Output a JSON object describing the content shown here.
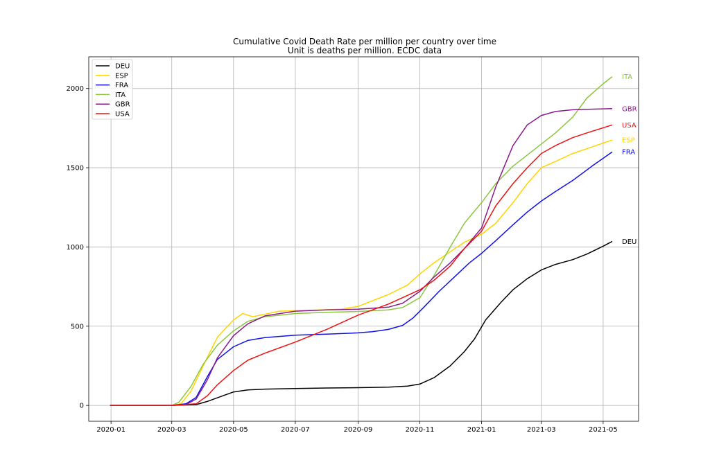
{
  "chart_data": {
    "type": "line",
    "title": "Cumulative Covid Death Rate per million per country over time",
    "subtitle": "Unit is deaths per million. ECDC data",
    "xlabel": "",
    "ylabel": "",
    "xlim": [
      "2019-12-10",
      "2021-06-05"
    ],
    "ylim": [
      -100,
      2200
    ],
    "x_ticks": [
      "2020-01",
      "2020-03",
      "2020-05",
      "2020-07",
      "2020-09",
      "2020-11",
      "2021-01",
      "2021-03",
      "2021-05"
    ],
    "y_ticks": [
      0,
      500,
      1000,
      1500,
      2000
    ],
    "grid": true,
    "legend_position": "top-left",
    "series": [
      {
        "name": "DEU",
        "color": "#000000",
        "points": [
          [
            "2019-12-31",
            0
          ],
          [
            "2020-03-01",
            0
          ],
          [
            "2020-03-25",
            5
          ],
          [
            "2020-04-05",
            25
          ],
          [
            "2020-04-20",
            60
          ],
          [
            "2020-05-01",
            85
          ],
          [
            "2020-05-15",
            98
          ],
          [
            "2020-06-01",
            103
          ],
          [
            "2020-07-01",
            107
          ],
          [
            "2020-08-01",
            110
          ],
          [
            "2020-09-01",
            112
          ],
          [
            "2020-10-01",
            115
          ],
          [
            "2020-10-20",
            122
          ],
          [
            "2020-11-01",
            135
          ],
          [
            "2020-11-15",
            175
          ],
          [
            "2020-12-01",
            250
          ],
          [
            "2020-12-15",
            340
          ],
          [
            "2020-12-25",
            420
          ],
          [
            "2021-01-05",
            540
          ],
          [
            "2021-01-20",
            650
          ],
          [
            "2021-02-01",
            730
          ],
          [
            "2021-02-15",
            800
          ],
          [
            "2021-03-01",
            855
          ],
          [
            "2021-03-15",
            890
          ],
          [
            "2021-04-01",
            920
          ],
          [
            "2021-04-15",
            955
          ],
          [
            "2021-05-01",
            1005
          ],
          [
            "2021-05-10",
            1035
          ]
        ]
      },
      {
        "name": "ESP",
        "color": "#ffd400",
        "points": [
          [
            "2019-12-31",
            0
          ],
          [
            "2020-03-01",
            0
          ],
          [
            "2020-03-10",
            10
          ],
          [
            "2020-03-20",
            90
          ],
          [
            "2020-04-01",
            250
          ],
          [
            "2020-04-15",
            430
          ],
          [
            "2020-05-01",
            540
          ],
          [
            "2020-05-10",
            580
          ],
          [
            "2020-05-20",
            560
          ],
          [
            "2020-06-15",
            595
          ],
          [
            "2020-07-15",
            600
          ],
          [
            "2020-08-15",
            607
          ],
          [
            "2020-09-01",
            625
          ],
          [
            "2020-09-15",
            660
          ],
          [
            "2020-10-01",
            700
          ],
          [
            "2020-10-20",
            760
          ],
          [
            "2020-11-01",
            830
          ],
          [
            "2020-11-15",
            900
          ],
          [
            "2020-12-01",
            970
          ],
          [
            "2020-12-15",
            1030
          ],
          [
            "2021-01-01",
            1080
          ],
          [
            "2021-01-15",
            1150
          ],
          [
            "2021-02-01",
            1280
          ],
          [
            "2021-02-15",
            1400
          ],
          [
            "2021-03-01",
            1500
          ],
          [
            "2021-03-15",
            1540
          ],
          [
            "2021-04-01",
            1590
          ],
          [
            "2021-05-10",
            1675
          ]
        ]
      },
      {
        "name": "FRA",
        "color": "#1010e6",
        "points": [
          [
            "2019-12-31",
            0
          ],
          [
            "2020-03-01",
            0
          ],
          [
            "2020-03-15",
            10
          ],
          [
            "2020-03-25",
            50
          ],
          [
            "2020-04-05",
            180
          ],
          [
            "2020-04-15",
            290
          ],
          [
            "2020-05-01",
            370
          ],
          [
            "2020-05-15",
            410
          ],
          [
            "2020-06-01",
            428
          ],
          [
            "2020-07-01",
            443
          ],
          [
            "2020-08-01",
            450
          ],
          [
            "2020-09-01",
            458
          ],
          [
            "2020-09-15",
            465
          ],
          [
            "2020-10-01",
            480
          ],
          [
            "2020-10-15",
            505
          ],
          [
            "2020-10-25",
            550
          ],
          [
            "2020-11-05",
            620
          ],
          [
            "2020-11-20",
            720
          ],
          [
            "2020-12-05",
            810
          ],
          [
            "2020-12-20",
            900
          ],
          [
            "2021-01-01",
            960
          ],
          [
            "2021-01-15",
            1040
          ],
          [
            "2021-02-01",
            1140
          ],
          [
            "2021-02-15",
            1220
          ],
          [
            "2021-03-01",
            1290
          ],
          [
            "2021-03-15",
            1350
          ],
          [
            "2021-04-01",
            1420
          ],
          [
            "2021-04-20",
            1510
          ],
          [
            "2021-05-10",
            1600
          ]
        ]
      },
      {
        "name": "ITA",
        "color": "#8cc63f",
        "points": [
          [
            "2019-12-31",
            0
          ],
          [
            "2020-03-01",
            0
          ],
          [
            "2020-03-08",
            20
          ],
          [
            "2020-03-20",
            120
          ],
          [
            "2020-04-01",
            260
          ],
          [
            "2020-04-15",
            380
          ],
          [
            "2020-05-01",
            470
          ],
          [
            "2020-05-15",
            530
          ],
          [
            "2020-06-01",
            560
          ],
          [
            "2020-07-01",
            580
          ],
          [
            "2020-08-01",
            588
          ],
          [
            "2020-09-01",
            593
          ],
          [
            "2020-10-01",
            603
          ],
          [
            "2020-10-15",
            618
          ],
          [
            "2020-11-01",
            680
          ],
          [
            "2020-11-15",
            820
          ],
          [
            "2020-12-01",
            1000
          ],
          [
            "2020-12-15",
            1150
          ],
          [
            "2021-01-01",
            1280
          ],
          [
            "2021-01-15",
            1400
          ],
          [
            "2021-02-01",
            1510
          ],
          [
            "2021-02-15",
            1580
          ],
          [
            "2021-03-01",
            1650
          ],
          [
            "2021-03-15",
            1720
          ],
          [
            "2021-04-01",
            1820
          ],
          [
            "2021-04-15",
            1940
          ],
          [
            "2021-05-01",
            2030
          ],
          [
            "2021-05-10",
            2075
          ]
        ]
      },
      {
        "name": "GBR",
        "color": "#8b1a8b",
        "points": [
          [
            "2019-12-31",
            0
          ],
          [
            "2020-03-01",
            0
          ],
          [
            "2020-03-15",
            5
          ],
          [
            "2020-03-25",
            40
          ],
          [
            "2020-04-05",
            160
          ],
          [
            "2020-04-15",
            300
          ],
          [
            "2020-05-01",
            440
          ],
          [
            "2020-05-15",
            515
          ],
          [
            "2020-06-01",
            565
          ],
          [
            "2020-07-01",
            595
          ],
          [
            "2020-08-01",
            603
          ],
          [
            "2020-09-01",
            607
          ],
          [
            "2020-10-01",
            620
          ],
          [
            "2020-10-15",
            645
          ],
          [
            "2020-11-01",
            720
          ],
          [
            "2020-11-15",
            810
          ],
          [
            "2020-12-01",
            900
          ],
          [
            "2020-12-15",
            990
          ],
          [
            "2021-01-01",
            1120
          ],
          [
            "2021-01-15",
            1380
          ],
          [
            "2021-02-01",
            1640
          ],
          [
            "2021-02-15",
            1770
          ],
          [
            "2021-03-01",
            1830
          ],
          [
            "2021-03-15",
            1855
          ],
          [
            "2021-04-01",
            1866
          ],
          [
            "2021-05-10",
            1873
          ]
        ]
      },
      {
        "name": "USA",
        "color": "#ee1111",
        "points": [
          [
            "2019-12-31",
            0
          ],
          [
            "2020-03-01",
            0
          ],
          [
            "2020-03-25",
            10
          ],
          [
            "2020-04-05",
            60
          ],
          [
            "2020-04-15",
            130
          ],
          [
            "2020-05-01",
            220
          ],
          [
            "2020-05-15",
            285
          ],
          [
            "2020-06-01",
            330
          ],
          [
            "2020-07-01",
            400
          ],
          [
            "2020-08-01",
            480
          ],
          [
            "2020-09-01",
            570
          ],
          [
            "2020-10-01",
            640
          ],
          [
            "2020-10-15",
            680
          ],
          [
            "2020-11-01",
            730
          ],
          [
            "2020-11-15",
            790
          ],
          [
            "2020-12-01",
            880
          ],
          [
            "2020-12-15",
            990
          ],
          [
            "2021-01-01",
            1100
          ],
          [
            "2021-01-15",
            1260
          ],
          [
            "2021-02-01",
            1400
          ],
          [
            "2021-02-15",
            1500
          ],
          [
            "2021-03-01",
            1590
          ],
          [
            "2021-03-15",
            1640
          ],
          [
            "2021-04-01",
            1690
          ],
          [
            "2021-04-15",
            1720
          ],
          [
            "2021-05-10",
            1770
          ]
        ]
      }
    ]
  }
}
